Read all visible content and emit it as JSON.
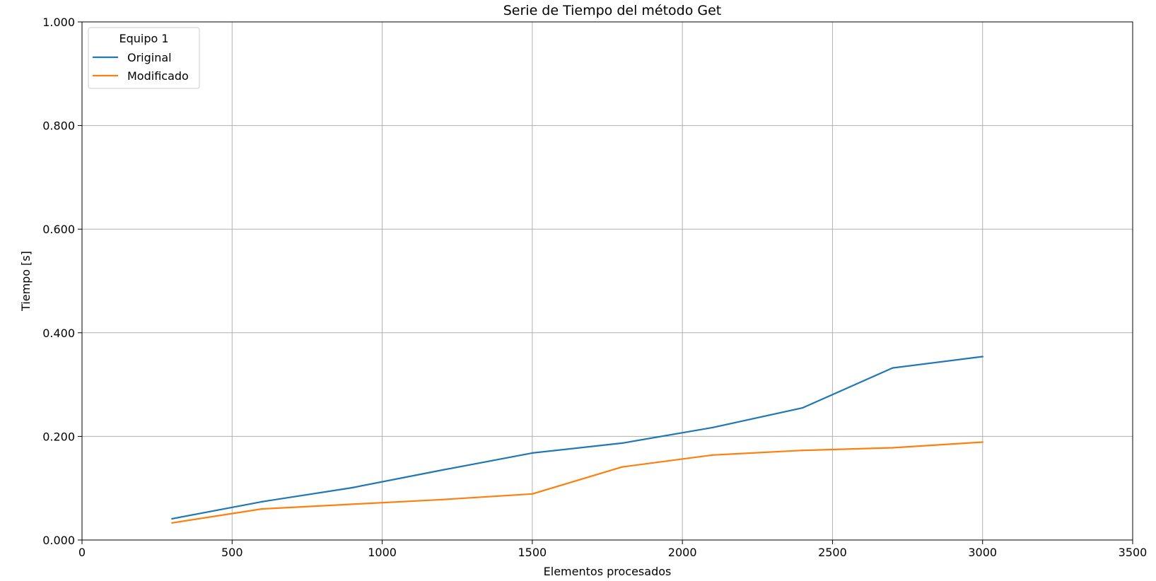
{
  "chart_data": {
    "type": "line",
    "title": "Serie de Tiempo del método Get",
    "xlabel": "Elementos procesados",
    "ylabel": "Tiempo [s]",
    "xlim": [
      0,
      3500
    ],
    "ylim": [
      0,
      1.0
    ],
    "xticks": [
      0,
      500,
      1000,
      1500,
      2000,
      2500,
      3000,
      3500
    ],
    "xtick_labels": [
      "0",
      "500",
      "1000",
      "1500",
      "2000",
      "2500",
      "3000",
      "3500"
    ],
    "yticks": [
      0,
      0.2,
      0.4,
      0.6,
      0.8,
      1.0
    ],
    "ytick_labels": [
      "0.000",
      "0.200",
      "0.400",
      "0.600",
      "0.800",
      "1.000"
    ],
    "grid": true,
    "legend": {
      "title": "Equipo 1",
      "placement": "top-left"
    },
    "x": [
      300,
      600,
      900,
      1200,
      1500,
      1800,
      2100,
      2400,
      2700,
      3000
    ],
    "series": [
      {
        "name": "Original",
        "color": "#1f77b4",
        "values": [
          0.041,
          0.074,
          0.101,
          0.135,
          0.168,
          0.187,
          0.217,
          0.255,
          0.332,
          0.354
        ]
      },
      {
        "name": "Modificado",
        "color": "#ff7f0e",
        "values": [
          0.033,
          0.06,
          0.069,
          0.078,
          0.089,
          0.141,
          0.164,
          0.173,
          0.178,
          0.189
        ]
      }
    ]
  }
}
